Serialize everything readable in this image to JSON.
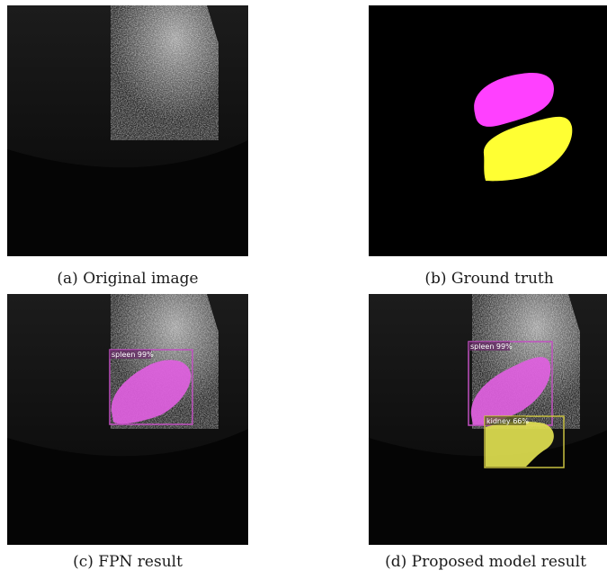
{
  "figure": {
    "panels": [
      {
        "id": "a",
        "caption": "(a) Original image"
      },
      {
        "id": "b",
        "caption": "(b) Ground truth"
      },
      {
        "id": "c",
        "caption": "(c) FPN result",
        "detections": [
          {
            "label": "spleen 99%",
            "color": "#c050c0"
          }
        ]
      },
      {
        "id": "d",
        "caption": "(d) Proposed model result",
        "detections": [
          {
            "label": "spleen 99%",
            "color": "#c050c0"
          },
          {
            "label": "kidney 66%",
            "color": "#c8c040"
          }
        ]
      }
    ],
    "colors": {
      "spleen_mask": "#ff40ff",
      "kidney_mask": "#ffff33",
      "spleen_pred": "#e060e0",
      "kidney_pred": "#e0e050"
    }
  }
}
